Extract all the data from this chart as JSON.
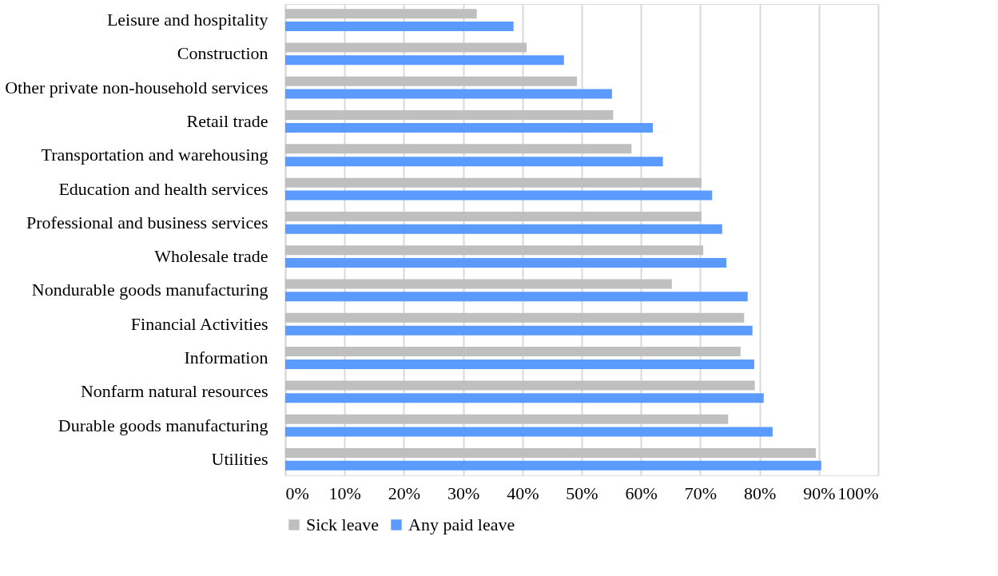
{
  "chart_data": {
    "type": "bar",
    "orientation": "horizontal",
    "categories": [
      "Leisure and hospitality",
      "Construction",
      "Other private non-household services",
      "Retail trade",
      "Transportation and warehousing",
      "Education and health services",
      "Professional and business services",
      "Wholesale trade",
      "Nondurable goods manufacturing",
      "Financial Activities",
      "Information",
      "Nonfarm natural resources",
      "Durable goods manufacturing",
      "Utilities"
    ],
    "series": [
      {
        "name": "Sick leave",
        "color": "#bfbfbf",
        "values": [
          32.3,
          40.7,
          49.2,
          55.3,
          58.4,
          70.2,
          70.2,
          70.5,
          65.2,
          77.4,
          76.8,
          79.2,
          74.7,
          89.5
        ]
      },
      {
        "name": "Any paid leave",
        "color": "#5b9bff",
        "values": [
          38.5,
          47.0,
          55.1,
          62.0,
          63.7,
          72.0,
          73.7,
          74.4,
          78.0,
          78.8,
          79.1,
          80.7,
          82.2,
          90.4
        ]
      }
    ],
    "xlim": [
      0,
      100
    ],
    "xticks": [
      {
        "value": 0,
        "label": "0%"
      },
      {
        "value": 10,
        "label": "10%"
      },
      {
        "value": 20,
        "label": "20%"
      },
      {
        "value": 30,
        "label": "30%"
      },
      {
        "value": 40,
        "label": "40%"
      },
      {
        "value": 50,
        "label": "50%"
      },
      {
        "value": 60,
        "label": "60%"
      },
      {
        "value": 70,
        "label": "70%"
      },
      {
        "value": 80,
        "label": "80%"
      },
      {
        "value": 90,
        "label": "90%"
      },
      {
        "value": 100,
        "label": "100%"
      }
    ],
    "grid": "x",
    "legend": "bottom"
  }
}
